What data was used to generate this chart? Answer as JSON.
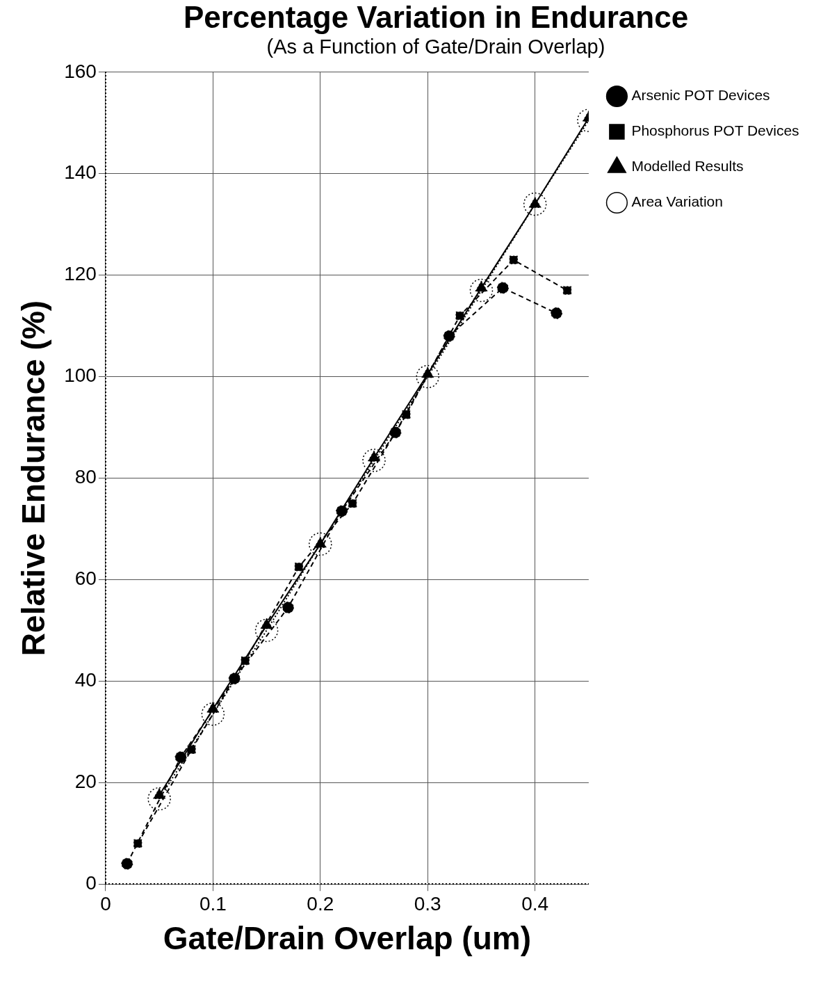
{
  "chart_data": {
    "type": "line",
    "title": "Percentage Variation in Endurance",
    "subtitle": "(As a Function of Gate/Drain Overlap)",
    "xlabel": "Gate/Drain Overlap (um)",
    "ylabel": "Relative Endurance (%)",
    "xlim": [
      0,
      0.45
    ],
    "xticks": [
      0,
      0.1,
      0.2,
      0.3,
      0.4
    ],
    "ylim": [
      0,
      160
    ],
    "yticks": [
      0,
      20,
      40,
      60,
      80,
      100,
      120,
      140,
      160
    ],
    "grid": true,
    "legend": "right",
    "series": [
      {
        "name": "Arsenic POT Devices",
        "color": "#000000",
        "marker": "circle",
        "line_style": "dashed",
        "x": [
          0.02,
          0.07,
          0.12,
          0.17,
          0.22,
          0.27,
          0.32,
          0.37,
          0.42
        ],
        "values": [
          4,
          25,
          40.5,
          54.5,
          73.5,
          89,
          108,
          117.5,
          112.5
        ]
      },
      {
        "name": "Phosphorus POT Devices",
        "color": "#000000",
        "marker": "square",
        "line_style": "dashed",
        "x": [
          0.03,
          0.08,
          0.13,
          0.18,
          0.23,
          0.28,
          0.33,
          0.38,
          0.43
        ],
        "values": [
          8,
          26.5,
          44,
          62.5,
          75,
          92.5,
          112,
          123,
          117
        ]
      },
      {
        "name": "Modelled Results",
        "color": "#000000",
        "marker": "triangle",
        "line_style": "solid",
        "x": [
          0.05,
          0.1,
          0.15,
          0.2,
          0.25,
          0.3,
          0.35,
          0.4,
          0.45
        ],
        "values": [
          17.5,
          34.5,
          51,
          67,
          84,
          100.5,
          117.5,
          134,
          151
        ]
      },
      {
        "name": "Area Variation",
        "color": "#000000",
        "marker": "circle",
        "line_style": "dotted",
        "x": [
          0.05,
          0.1,
          0.15,
          0.2,
          0.25,
          0.3,
          0.35,
          0.4,
          0.45
        ],
        "values": [
          16.8,
          33.5,
          50,
          67,
          83.5,
          100,
          117,
          134,
          150.5
        ]
      }
    ]
  }
}
